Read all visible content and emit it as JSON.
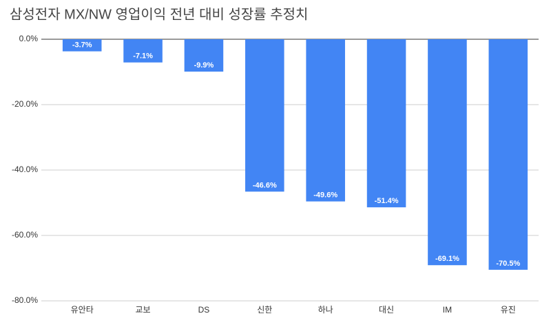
{
  "chart_data": {
    "type": "bar",
    "title": "삼성전자 MX/NW 영업이익 전년 대비 성장률 추정치",
    "categories": [
      "유안타",
      "교보",
      "DS",
      "신한",
      "하나",
      "대신",
      "IM",
      "유진"
    ],
    "values": [
      -3.7,
      -7.1,
      -9.9,
      -46.6,
      -49.6,
      -51.4,
      -69.1,
      -70.5
    ],
    "value_labels": [
      "-3.7%",
      "-7.1%",
      "-9.9%",
      "-46.6%",
      "-49.6%",
      "-51.4%",
      "-69.1%",
      "-70.5%"
    ],
    "color": "#4285f4",
    "ylim": [
      -80,
      0
    ],
    "yticks": [
      {
        "value": 0,
        "label": "0.0%"
      },
      {
        "value": -20,
        "label": "-20.0%"
      },
      {
        "value": -40,
        "label": "-40.0%"
      },
      {
        "value": -60,
        "label": "-60.0%"
      },
      {
        "value": -80,
        "label": "-80.0%"
      }
    ],
    "grid": true
  }
}
